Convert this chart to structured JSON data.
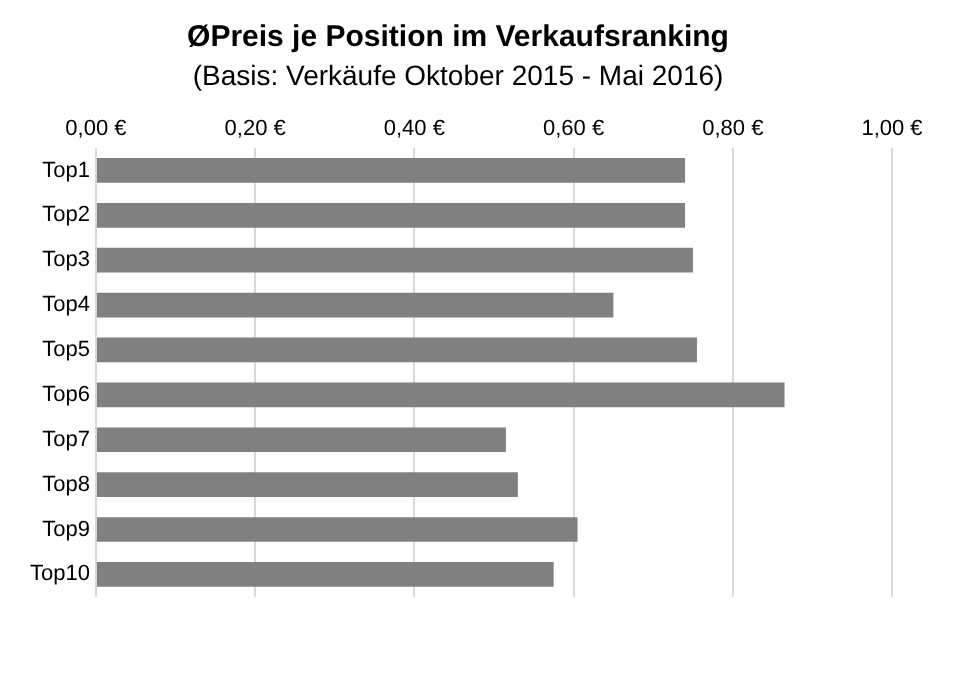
{
  "chart_data": {
    "type": "bar",
    "orientation": "horizontal",
    "title": "ØPreis je Position im Verkaufsranking",
    "subtitle": "(Basis: Verkäufe Oktober 2015 - Mai 2016)",
    "categories": [
      "Top1",
      "Top2",
      "Top3",
      "Top4",
      "Top5",
      "Top6",
      "Top7",
      "Top8",
      "Top9",
      "Top10"
    ],
    "values": [
      0.74,
      0.74,
      0.75,
      0.65,
      0.755,
      0.865,
      0.515,
      0.53,
      0.605,
      0.575
    ],
    "color": "#808080",
    "xlim": [
      0,
      1
    ],
    "xticks": [
      {
        "value": 0,
        "label": "0,00 €"
      },
      {
        "value": 0.2,
        "label": "0,20 €"
      },
      {
        "value": 0.4,
        "label": "0,40 €"
      },
      {
        "value": 0.6,
        "label": "0,60 €"
      },
      {
        "value": 0.8,
        "label": "0,80 €"
      },
      {
        "value": 1,
        "label": "1,00 €"
      }
    ],
    "grid": "x",
    "legend": false
  }
}
